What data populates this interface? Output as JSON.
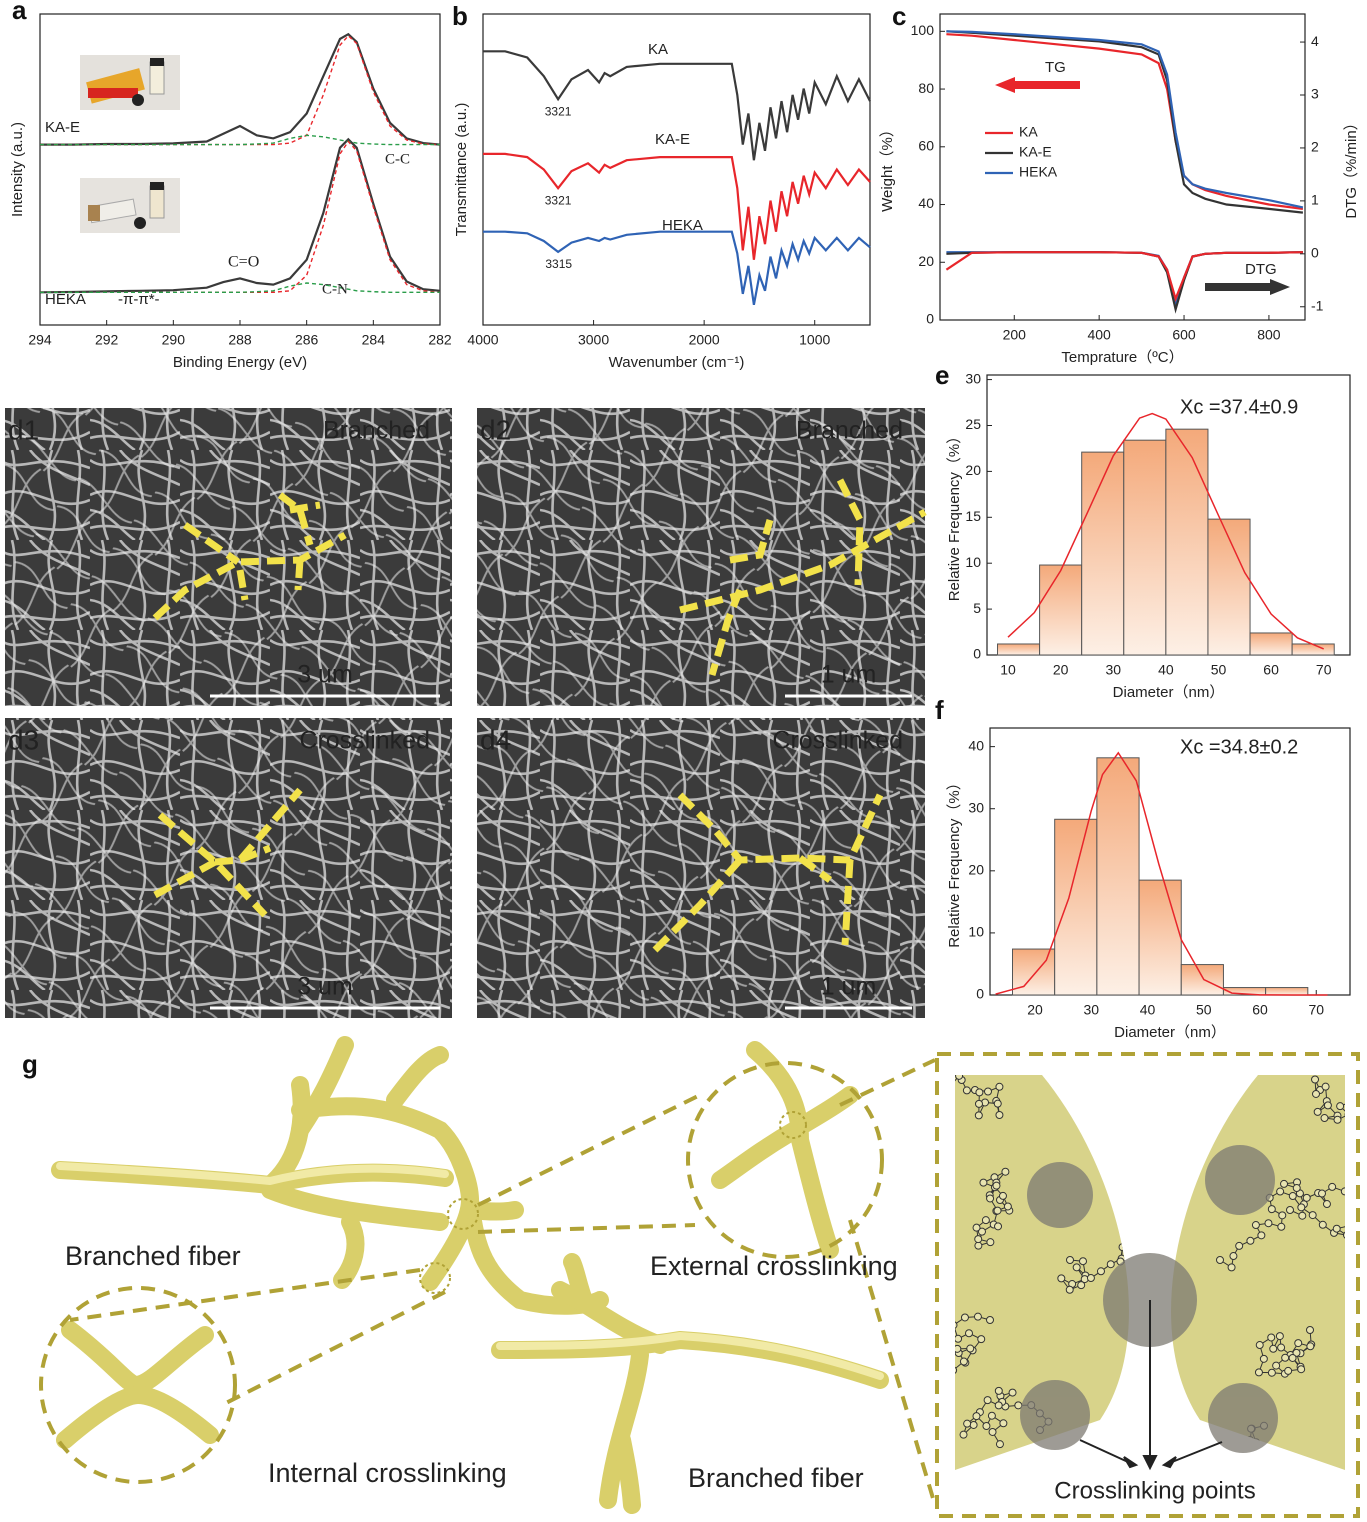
{
  "chart_data": [
    {
      "type": "line",
      "panel": "a",
      "xlabel": "Binding Energy (eV)",
      "ylabel": "Intensity (a.u.)",
      "x": [
        294,
        293,
        292,
        291,
        290,
        289,
        288.5,
        288,
        287.5,
        287,
        286.5,
        286,
        285.5,
        285,
        284.75,
        284.5,
        284,
        283.5,
        283,
        282.5,
        282
      ],
      "xlim": [
        294,
        282
      ],
      "xticks": [
        294,
        292,
        290,
        288,
        286,
        284,
        282
      ],
      "ylim": [
        0,
        10
      ],
      "series": [
        {
          "name": "KA-E",
          "color": "#3a3a3a",
          "values": [
            5.8,
            5.8,
            5.82,
            5.82,
            5.84,
            5.9,
            6.15,
            6.4,
            6.1,
            6.0,
            6.2,
            6.8,
            8.0,
            9.2,
            9.35,
            9.1,
            7.6,
            6.5,
            6.0,
            5.85,
            5.8
          ]
        },
        {
          "name": "HEKA",
          "color": "#3a3a3a",
          "values": [
            1.05,
            1.06,
            1.08,
            1.1,
            1.12,
            1.2,
            1.38,
            1.5,
            1.35,
            1.3,
            1.5,
            2.1,
            3.6,
            5.7,
            5.97,
            5.7,
            3.9,
            2.2,
            1.4,
            1.15,
            1.1
          ]
        },
        {
          "color": "#e8262b",
          "dash": true,
          "values": [
            5.8,
            5.8,
            5.8,
            5.8,
            5.8,
            5.8,
            5.8,
            5.8,
            5.8,
            5.8,
            5.85,
            6.1,
            7.4,
            9.0,
            9.3,
            9.05,
            7.5,
            6.4,
            5.95,
            5.82,
            5.8
          ]
        },
        {
          "color": "#2a9d4a",
          "dash": true,
          "values": [
            5.8,
            5.8,
            5.8,
            5.8,
            5.8,
            5.8,
            5.8,
            5.8,
            5.82,
            5.85,
            6.0,
            6.1,
            6.05,
            5.95,
            5.9,
            5.85,
            5.82,
            5.8,
            5.8,
            5.8,
            5.8
          ]
        },
        {
          "name": "C-C",
          "color": "#e8262b",
          "dash": true,
          "values": [
            1.05,
            1.05,
            1.05,
            1.05,
            1.05,
            1.05,
            1.05,
            1.05,
            1.05,
            1.05,
            1.1,
            1.6,
            3.2,
            5.5,
            5.9,
            5.6,
            3.8,
            2.1,
            1.3,
            1.1,
            1.05
          ]
        },
        {
          "name": "C-N",
          "color": "#2a9d4a",
          "dash": true,
          "values": [
            1.05,
            1.05,
            1.05,
            1.05,
            1.05,
            1.05,
            1.05,
            1.05,
            1.07,
            1.1,
            1.25,
            1.35,
            1.3,
            1.2,
            1.15,
            1.1,
            1.07,
            1.05,
            1.05,
            1.05,
            1.05
          ]
        }
      ],
      "annotations": [
        {
          "text": "-π-π*-"
        },
        {
          "text": "C=O",
          "color": "#2f5fb0"
        }
      ]
    },
    {
      "type": "line",
      "panel": "b",
      "xlabel": "Wavenumber (cm⁻¹)",
      "ylabel": "Transmittance (a.u.)",
      "x": [
        4000,
        3800,
        3600,
        3450,
        3321,
        3200,
        3050,
        2950,
        2900,
        2850,
        2700,
        2400,
        2000,
        1750,
        1700,
        1650,
        1600,
        1550,
        1500,
        1450,
        1400,
        1350,
        1300,
        1250,
        1200,
        1150,
        1100,
        1050,
        1000,
        900,
        800,
        700,
        600,
        500
      ],
      "xlim": [
        4000,
        500
      ],
      "xticks": [
        4000,
        3000,
        2000,
        1000
      ],
      "ylim": [
        0,
        10
      ],
      "series": [
        {
          "name": "KA",
          "color": "#3a3a3a",
          "peak": 3321,
          "values": [
            8.8,
            8.8,
            8.6,
            8.0,
            7.26,
            7.9,
            8.2,
            7.8,
            8.1,
            8.0,
            8.3,
            8.4,
            8.4,
            8.4,
            7.4,
            5.8,
            6.8,
            5.3,
            6.5,
            5.6,
            7.0,
            6.0,
            7.2,
            6.2,
            7.4,
            6.6,
            7.6,
            6.8,
            7.8,
            7.1,
            8.0,
            7.2,
            7.9,
            7.2
          ]
        },
        {
          "name": "KA-E",
          "color": "#e8262b",
          "peak": 3321,
          "values": [
            5.5,
            5.5,
            5.4,
            5.0,
            4.4,
            4.95,
            5.2,
            4.9,
            5.15,
            5.05,
            5.3,
            5.4,
            5.4,
            5.4,
            4.4,
            2.4,
            3.8,
            2.1,
            3.5,
            2.6,
            4.0,
            3.0,
            4.3,
            3.5,
            4.6,
            3.9,
            4.8,
            4.2,
            4.9,
            4.4,
            5.0,
            4.5,
            5.0,
            4.6
          ]
        },
        {
          "name": "HEKA",
          "color": "#2f63b5",
          "peak": 3315,
          "values": [
            3.0,
            3.0,
            2.95,
            2.7,
            2.35,
            2.65,
            2.8,
            2.7,
            2.8,
            2.75,
            2.9,
            3.0,
            3.0,
            3.0,
            2.3,
            1.0,
            1.9,
            0.65,
            1.6,
            1.1,
            2.2,
            1.5,
            2.4,
            1.9,
            2.6,
            2.1,
            2.7,
            2.3,
            2.8,
            2.4,
            2.8,
            2.4,
            2.8,
            2.5
          ]
        }
      ]
    },
    {
      "type": "line",
      "panel": "c",
      "xlabel": "Temprature（ºC）",
      "ylabel": "Weight（%）",
      "y2label": "DTG（%/min）",
      "x": [
        40,
        100,
        200,
        300,
        400,
        500,
        540,
        560,
        580,
        600,
        620,
        650,
        700,
        800,
        880
      ],
      "xlim": [
        25,
        885
      ],
      "xticks": [
        200,
        400,
        600,
        800
      ],
      "ylim": [
        0,
        106
      ],
      "yticks": [
        0,
        20,
        40,
        60,
        80,
        100
      ],
      "y2lim": [
        -1.25,
        4.53
      ],
      "y2ticks": [
        -1,
        0,
        1,
        2,
        3,
        4
      ],
      "legend": "center left",
      "series": [
        {
          "name": "KA",
          "color": "#e8262b",
          "values": [
            99,
            98.5,
            97,
            95.5,
            94,
            92,
            89,
            80,
            62,
            50,
            47,
            45,
            43,
            40,
            38.5
          ]
        },
        {
          "name": "KA-E",
          "color": "#333333",
          "values": [
            100,
            99.5,
            98.5,
            97.5,
            96.5,
            94.5,
            92,
            83,
            62,
            47,
            44,
            42,
            40,
            38.5,
            37.2
          ]
        },
        {
          "name": "HEKA",
          "color": "#2f63b5",
          "values": [
            100,
            99.8,
            99,
            98,
            97,
            95.5,
            93,
            85,
            65,
            50,
            47,
            45.5,
            44,
            41.5,
            39
          ]
        },
        {
          "color": "#2f63b5",
          "axis": "y2",
          "values": [
            0.03,
            0.03,
            0.03,
            0.03,
            0.03,
            0.02,
            -0.04,
            -0.3,
            -0.95,
            -0.45,
            -0.05,
            0.0,
            0.02,
            0.02,
            0.03
          ]
        },
        {
          "color": "#333333",
          "axis": "y2",
          "values": [
            0.0,
            0.02,
            0.03,
            0.03,
            0.03,
            0.02,
            -0.05,
            -0.35,
            -1.05,
            -0.5,
            -0.05,
            0.0,
            0.02,
            0.02,
            0.03
          ]
        },
        {
          "color": "#e8262b",
          "axis": "y2",
          "values": [
            -0.3,
            0.02,
            0.03,
            0.03,
            0.03,
            0.02,
            -0.05,
            -0.3,
            -0.85,
            -0.45,
            -0.05,
            0.0,
            0.02,
            0.02,
            0.03
          ]
        }
      ],
      "annotations": [
        {
          "text": "TG",
          "arrow_color": "#e8262b"
        },
        {
          "text": "DTG",
          "arrow_color": "#333333"
        }
      ]
    },
    {
      "type": "histogram",
      "panel": "e",
      "xlabel": "Diameter（nm）",
      "ylabel": "Relative Frequency（%）",
      "bins": [
        8,
        16,
        24,
        32,
        40,
        48,
        56,
        64,
        72
      ],
      "values": [
        1.2,
        9.8,
        22.1,
        23.4,
        24.6,
        14.8,
        2.4,
        1.2
      ],
      "color": "#f4a97a",
      "xlim": [
        6,
        75
      ],
      "xticks": [
        10,
        20,
        30,
        40,
        50,
        60,
        70
      ],
      "ylim": [
        0,
        30.5
      ],
      "yticks": [
        0,
        5,
        10,
        15,
        20,
        25,
        30
      ],
      "fit": {
        "color": "#e8262b",
        "x": [
          10,
          15,
          20,
          25,
          30,
          35,
          37.4,
          40,
          45,
          50,
          55,
          60,
          65,
          70
        ],
        "values": [
          1.94,
          4.61,
          9.19,
          15.4,
          21.7,
          25.8,
          26.3,
          25.7,
          21.5,
          15.2,
          8.97,
          4.47,
          1.87,
          0.66
        ]
      },
      "annotations": [
        {
          "text": "Xc =37.4±0.9"
        }
      ]
    },
    {
      "type": "histogram",
      "panel": "f",
      "xlabel": "Diameter（nm）",
      "ylabel": "Relative Frequency（%）",
      "bins": [
        16,
        23.5,
        31,
        38.5,
        46,
        53.5,
        61,
        68.5
      ],
      "values": [
        7.4,
        28.3,
        38.2,
        18.5,
        4.9,
        1.2,
        1.2
      ],
      "color": "#f4a97a",
      "xlim": [
        12,
        76
      ],
      "xticks": [
        20,
        30,
        40,
        50,
        60,
        70
      ],
      "ylim": [
        0,
        43
      ],
      "yticks": [
        0,
        10,
        20,
        30,
        40
      ],
      "fit": {
        "color": "#e8262b",
        "x": [
          13,
          18,
          22,
          26,
          30,
          32,
          34.8,
          38,
          42,
          46,
          50,
          55,
          60,
          66,
          72
        ],
        "values": [
          0.14,
          1.38,
          5.6,
          15.6,
          29.7,
          35.5,
          39,
          34.5,
          21.1,
          8.9,
          2.5,
          0.31,
          0.02,
          0,
          0
        ]
      },
      "annotations": [
        {
          "text": "Xc =34.8±0.2"
        }
      ]
    }
  ],
  "sem_images": [
    {
      "panel": "d1",
      "label": "Branched",
      "scale_bar": "3 um"
    },
    {
      "panel": "d2",
      "label": "Branched",
      "scale_bar": "1 um"
    },
    {
      "panel": "d3",
      "label": "Crosslinked",
      "scale_bar": "3 um"
    },
    {
      "panel": "d4",
      "label": "Crosslinked",
      "scale_bar": "1 um"
    }
  ],
  "schematic": {
    "panel": "g",
    "labels": [
      "Branched fiber",
      "External crosslinking",
      "Internal crosslinking",
      "Branched fiber",
      "Crosslinking points"
    ]
  }
}
